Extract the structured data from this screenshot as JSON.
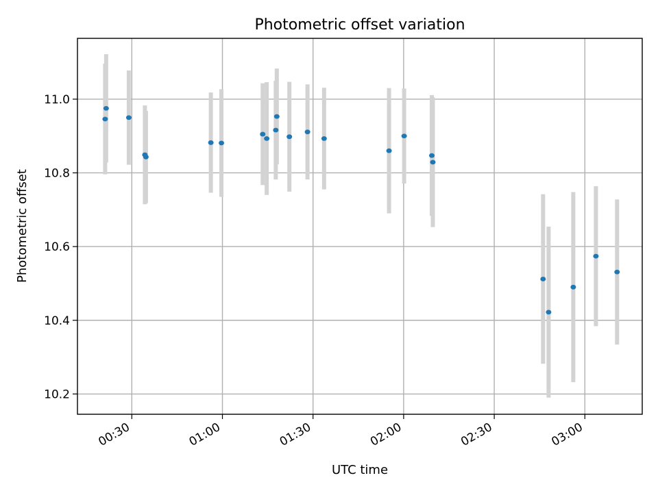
{
  "chart_data": {
    "type": "scatter",
    "title": "Photometric offset variation",
    "xlabel": "UTC time",
    "ylabel": "Photometric offset",
    "x_unit": "time (HH:MM UTC)",
    "xlim": [
      "00:12",
      "03:19"
    ],
    "ylim": [
      10.145,
      11.165
    ],
    "x_ticks": [
      "00:30",
      "01:00",
      "01:30",
      "02:00",
      "02:30",
      "03:00"
    ],
    "y_ticks": [
      10.2,
      10.4,
      10.6,
      10.8,
      11.0
    ],
    "y_tick_labels": [
      "10.2",
      "10.4",
      "10.6",
      "10.8",
      "11.0"
    ],
    "grid": true,
    "marker_color": "#1f77b4",
    "errorbar_color": "#d3d3d3",
    "series": [
      {
        "points": [
          {
            "x": "00:21:10",
            "y": 10.946,
            "err": 0.15
          },
          {
            "x": "00:21:30",
            "y": 10.975,
            "err": 0.147
          },
          {
            "x": "00:29:00",
            "y": 10.95,
            "err": 0.128
          },
          {
            "x": "00:34:20",
            "y": 10.849,
            "err": 0.134
          },
          {
            "x": "00:34:40",
            "y": 10.843,
            "err": 0.125
          },
          {
            "x": "00:56:10",
            "y": 10.882,
            "err": 0.136
          },
          {
            "x": "00:59:40",
            "y": 10.881,
            "err": 0.146
          },
          {
            "x": "01:13:20",
            "y": 10.905,
            "err": 0.138
          },
          {
            "x": "01:14:40",
            "y": 10.893,
            "err": 0.153
          },
          {
            "x": "01:17:40",
            "y": 10.916,
            "err": 0.134
          },
          {
            "x": "01:18:00",
            "y": 10.953,
            "err": 0.13
          },
          {
            "x": "01:22:10",
            "y": 10.898,
            "err": 0.149
          },
          {
            "x": "01:28:10",
            "y": 10.911,
            "err": 0.129
          },
          {
            "x": "01:33:40",
            "y": 10.893,
            "err": 0.138
          },
          {
            "x": "01:55:10",
            "y": 10.86,
            "err": 0.17
          },
          {
            "x": "02:00:10",
            "y": 10.9,
            "err": 0.129
          },
          {
            "x": "02:09:20",
            "y": 10.847,
            "err": 0.164
          },
          {
            "x": "02:09:40",
            "y": 10.829,
            "err": 0.176
          },
          {
            "x": "02:46:10",
            "y": 10.512,
            "err": 0.23
          },
          {
            "x": "02:48:00",
            "y": 10.422,
            "err": 0.232
          },
          {
            "x": "02:56:10",
            "y": 10.49,
            "err": 0.258
          },
          {
            "x": "03:03:40",
            "y": 10.574,
            "err": 0.19
          },
          {
            "x": "03:10:40",
            "y": 10.531,
            "err": 0.197
          }
        ]
      }
    ]
  }
}
